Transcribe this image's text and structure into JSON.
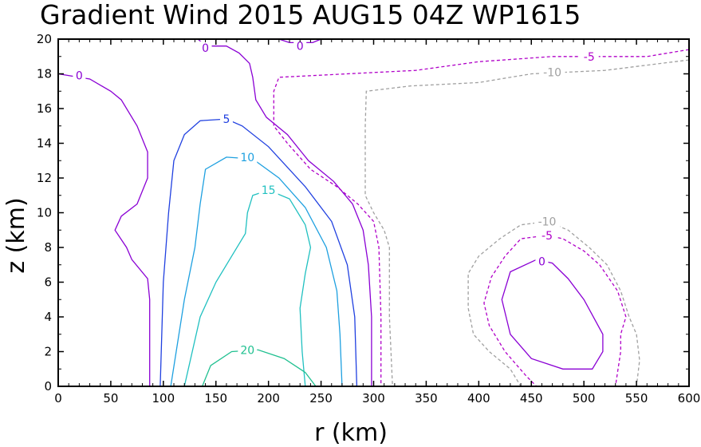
{
  "chart_data": {
    "type": "contour",
    "title": "Gradient Wind 2015 AUG15 04Z   WP1615",
    "xlabel": "r (km)",
    "ylabel": "z (km)",
    "xlim": [
      0,
      600
    ],
    "ylim": [
      0,
      20
    ],
    "xticks": [
      "0",
      "50",
      "100",
      "150",
      "200",
      "250",
      "300",
      "350",
      "400",
      "450",
      "500",
      "550",
      "600"
    ],
    "yticks": [
      "0",
      "2",
      "4",
      "6",
      "8",
      "10",
      "12",
      "14",
      "16",
      "18",
      "20"
    ],
    "grid": false,
    "contours": [
      {
        "level": "0",
        "color": "#8a00d4",
        "dash": "",
        "label_at": [
          20,
          17.9
        ],
        "points": [
          [
            0,
            18
          ],
          [
            30,
            17.7
          ],
          [
            50,
            17
          ],
          [
            60,
            16.5
          ],
          [
            75,
            15
          ],
          [
            85,
            13.5
          ],
          [
            85,
            12
          ],
          [
            75,
            10.5
          ],
          [
            60,
            9.8
          ],
          [
            54,
            9
          ],
          [
            65,
            8
          ],
          [
            70,
            7.3
          ],
          [
            85,
            6.2
          ],
          [
            87,
            5
          ],
          [
            87,
            0
          ]
        ]
      },
      {
        "level": "0",
        "color": "#8a00d4",
        "dash": "",
        "label_at": [
          140,
          19.5
        ],
        "points": [
          [
            133,
            20
          ],
          [
            140,
            19.6
          ],
          [
            160,
            19.6
          ],
          [
            172,
            19.2
          ],
          [
            182,
            18.6
          ],
          [
            185,
            17.8
          ],
          [
            188,
            16.5
          ],
          [
            198,
            15.5
          ],
          [
            218,
            14.5
          ],
          [
            238,
            13
          ],
          [
            262,
            11.8
          ],
          [
            280,
            10.5
          ],
          [
            290,
            9
          ],
          [
            295,
            7
          ],
          [
            298,
            4
          ],
          [
            298,
            0
          ]
        ]
      },
      {
        "level": "0",
        "color": "#8a00d4",
        "dash": "",
        "label_at": [
          230,
          19.6
        ],
        "points": [
          [
            210,
            20
          ],
          [
            220,
            19.8
          ],
          [
            242,
            19.8
          ],
          [
            250,
            20
          ]
        ]
      },
      {
        "level": "0",
        "color": "#8a00d4",
        "dash": "",
        "label_at": [
          460,
          7.2
        ],
        "points": [
          [
            455,
            7.3
          ],
          [
            430,
            6.6
          ],
          [
            422,
            5
          ],
          [
            430,
            3
          ],
          [
            450,
            1.6
          ],
          [
            480,
            1.0
          ],
          [
            508,
            1.0
          ],
          [
            518,
            2
          ],
          [
            518,
            3
          ],
          [
            500,
            5
          ],
          [
            485,
            6.2
          ],
          [
            470,
            7.1
          ],
          [
            455,
            7.3
          ]
        ]
      },
      {
        "level": "5",
        "color": "#2040e0",
        "dash": "",
        "label_at": [
          160,
          15.4
        ],
        "points": [
          [
            97,
            0
          ],
          [
            100,
            6
          ],
          [
            105,
            10
          ],
          [
            110,
            13
          ],
          [
            120,
            14.5
          ],
          [
            135,
            15.3
          ],
          [
            160,
            15.4
          ],
          [
            175,
            15
          ],
          [
            200,
            13.8
          ],
          [
            235,
            11.5
          ],
          [
            260,
            9.5
          ],
          [
            275,
            7
          ],
          [
            282,
            4
          ],
          [
            284,
            0
          ]
        ]
      },
      {
        "level": "10",
        "color": "#1ea0e0",
        "dash": "",
        "label_at": [
          180,
          13.2
        ],
        "points": [
          [
            107,
            0
          ],
          [
            120,
            5
          ],
          [
            130,
            8
          ],
          [
            135,
            10.5
          ],
          [
            140,
            12.5
          ],
          [
            160,
            13.2
          ],
          [
            185,
            13.1
          ],
          [
            210,
            12
          ],
          [
            235,
            10.3
          ],
          [
            255,
            8
          ],
          [
            265,
            5.5
          ],
          [
            268,
            3
          ],
          [
            270,
            0
          ]
        ]
      },
      {
        "level": "15",
        "color": "#20c0c0",
        "dash": "",
        "label_at": [
          200,
          11.3
        ],
        "points": [
          [
            120,
            0
          ],
          [
            135,
            4
          ],
          [
            150,
            6
          ],
          [
            165,
            7.5
          ],
          [
            178,
            8.8
          ],
          [
            180,
            10
          ],
          [
            185,
            11
          ],
          [
            200,
            11.3
          ],
          [
            220,
            10.8
          ],
          [
            235,
            9.3
          ],
          [
            240,
            8
          ],
          [
            235,
            6.5
          ],
          [
            230,
            4.5
          ],
          [
            232,
            2
          ],
          [
            235,
            0
          ]
        ]
      },
      {
        "level": "20",
        "color": "#20c090",
        "dash": "",
        "label_at": [
          180,
          2.1
        ],
        "points": [
          [
            137,
            0
          ],
          [
            145,
            1.2
          ],
          [
            165,
            2
          ],
          [
            190,
            2.1
          ],
          [
            215,
            1.6
          ],
          [
            235,
            0.8
          ],
          [
            245,
            0
          ]
        ]
      },
      {
        "level": "-5",
        "color": "#b000c8",
        "dash": "4,3",
        "label_at": [
          505,
          19.0
        ],
        "points": [
          [
            600,
            19.4
          ],
          [
            560,
            19
          ],
          [
            520,
            19
          ],
          [
            470,
            19
          ],
          [
            400,
            18.7
          ],
          [
            340,
            18.2
          ],
          [
            210,
            17.8
          ],
          [
            205,
            17
          ],
          [
            205,
            15
          ],
          [
            218,
            14
          ],
          [
            240,
            12.5
          ],
          [
            265,
            11.5
          ],
          [
            285,
            10.5
          ],
          [
            300,
            9.5
          ],
          [
            305,
            8
          ],
          [
            307,
            4
          ],
          [
            307,
            0
          ]
        ]
      },
      {
        "level": "-5",
        "color": "#b000c8",
        "dash": "4,3",
        "label_at": [
          465,
          8.7
        ],
        "points": [
          [
            465,
            8.7
          ],
          [
            440,
            8.5
          ],
          [
            425,
            7.5
          ],
          [
            412,
            6.3
          ],
          [
            405,
            4.8
          ],
          [
            410,
            3.5
          ],
          [
            425,
            2
          ],
          [
            445,
            0.6
          ],
          [
            455,
            0
          ],
          [
            530,
            0
          ],
          [
            535,
            2
          ],
          [
            535,
            3
          ],
          [
            540,
            4
          ],
          [
            532,
            5.5
          ],
          [
            515,
            7
          ],
          [
            500,
            7.8
          ],
          [
            480,
            8.5
          ],
          [
            465,
            8.7
          ]
        ]
      },
      {
        "level": "-10",
        "color": "#a0a0a0",
        "dash": "4,3",
        "label_at": [
          470,
          18.1
        ],
        "points": [
          [
            600,
            18.8
          ],
          [
            560,
            18.5
          ],
          [
            520,
            18.2
          ],
          [
            450,
            18
          ],
          [
            400,
            17.5
          ],
          [
            335,
            17.3
          ],
          [
            293,
            17
          ],
          [
            292,
            15
          ],
          [
            292,
            13
          ],
          [
            292,
            11
          ],
          [
            300,
            10
          ],
          [
            310,
            9
          ],
          [
            315,
            8
          ],
          [
            315,
            4
          ],
          [
            318,
            0
          ]
        ]
      },
      {
        "level": "-10",
        "color": "#a0a0a0",
        "dash": "4,3",
        "label_at": [
          465,
          9.5
        ],
        "points": [
          [
            465,
            9.5
          ],
          [
            440,
            9.3
          ],
          [
            420,
            8.5
          ],
          [
            400,
            7.5
          ],
          [
            390,
            6.5
          ],
          [
            390,
            4.5
          ],
          [
            395,
            3
          ],
          [
            410,
            2
          ],
          [
            430,
            1
          ],
          [
            440,
            0
          ],
          [
            550,
            0
          ],
          [
            553,
            1.5
          ],
          [
            550,
            3
          ],
          [
            543,
            4
          ],
          [
            535,
            5.5
          ],
          [
            522,
            7
          ],
          [
            505,
            8
          ],
          [
            485,
            9
          ],
          [
            465,
            9.5
          ]
        ]
      }
    ]
  }
}
